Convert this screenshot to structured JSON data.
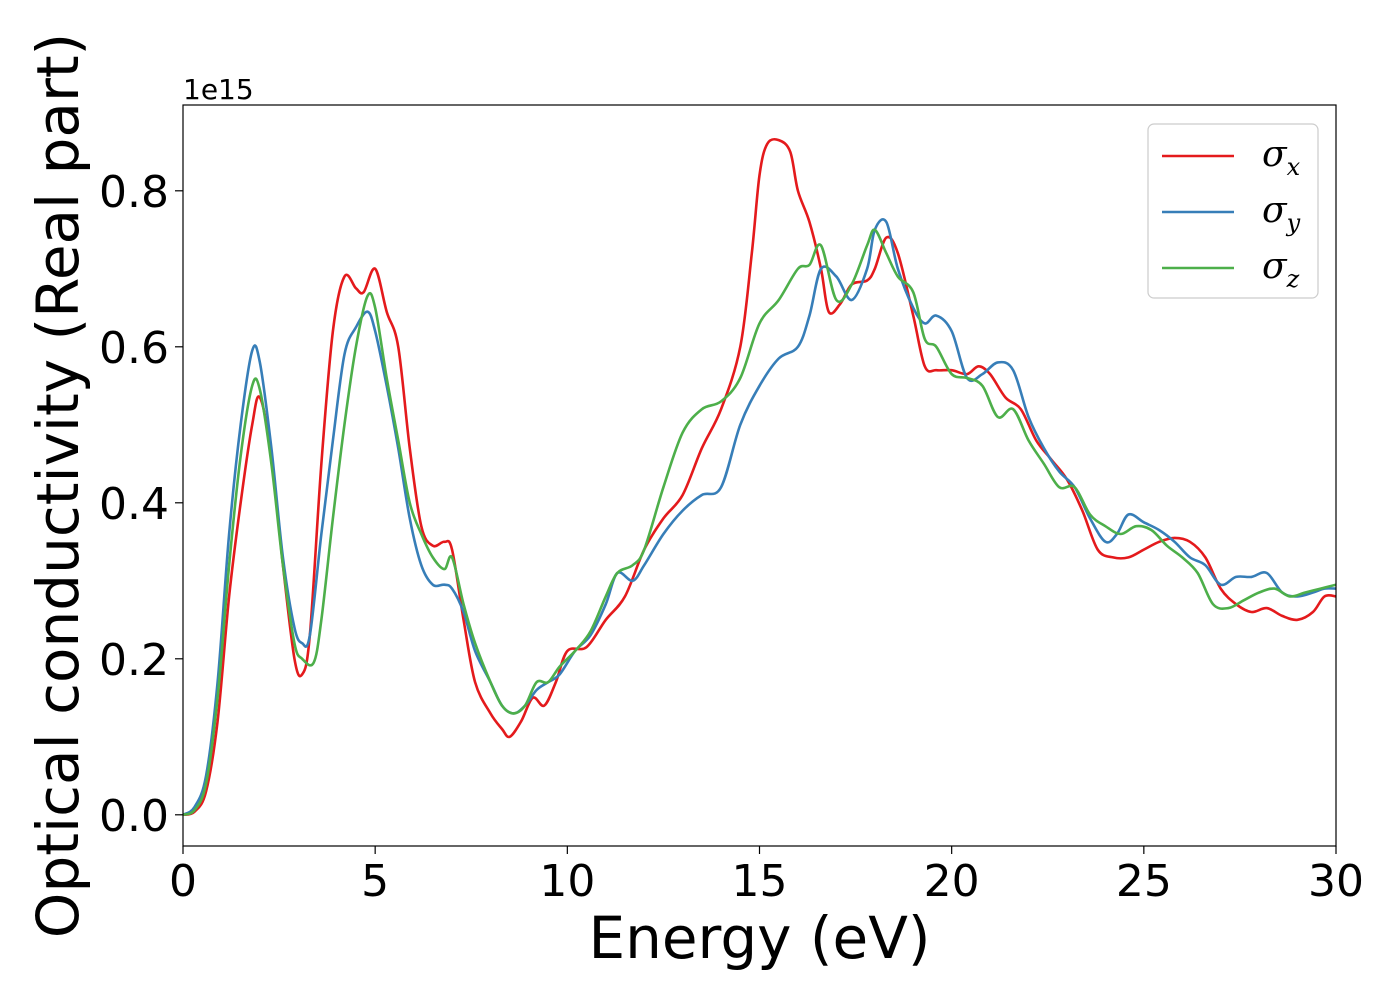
{
  "chart_data": {
    "type": "line",
    "xlabel": "Energy (eV)",
    "ylabel": "Optical conductivity (Real part)",
    "y_offset_label": "1e15",
    "xlim": [
      0,
      30
    ],
    "ylim": [
      -0.04,
      0.91
    ],
    "xticks": [
      0,
      5,
      10,
      15,
      20,
      25,
      30
    ],
    "yticks": [
      0.0,
      0.2,
      0.4,
      0.6,
      0.8
    ],
    "xtick_labels": [
      "0",
      "5",
      "10",
      "15",
      "20",
      "25",
      "30"
    ],
    "ytick_labels": [
      "0.0",
      "0.2",
      "0.4",
      "0.6",
      "0.8"
    ],
    "grid": false,
    "legend": {
      "placement": "top-right",
      "entries": [
        {
          "base": "σ",
          "sub": "x",
          "color": "#e41a1c"
        },
        {
          "base": "σ",
          "sub": "y",
          "color": "#377eb8"
        },
        {
          "base": "σ",
          "sub": "z",
          "color": "#4daf4a"
        }
      ]
    },
    "series": [
      {
        "color": "#e41a1c",
        "x": [
          0,
          0.3,
          0.6,
          0.9,
          1.2,
          1.5,
          1.8,
          2.0,
          2.3,
          2.6,
          2.9,
          3.1,
          3.3,
          3.6,
          3.9,
          4.2,
          4.5,
          4.7,
          5.0,
          5.3,
          5.6,
          5.9,
          6.2,
          6.5,
          6.8,
          7.0,
          7.3,
          7.6,
          8.0,
          8.3,
          8.5,
          8.8,
          9.1,
          9.4,
          9.7,
          10.0,
          10.5,
          11.0,
          11.5,
          12.0,
          12.5,
          13.0,
          13.5,
          14.0,
          14.5,
          14.8,
          15.0,
          15.2,
          15.5,
          15.8,
          16.0,
          16.3,
          16.6,
          16.8,
          17.1,
          17.4,
          17.8,
          18.0,
          18.3,
          18.6,
          19.0,
          19.3,
          19.6,
          20.0,
          20.4,
          20.7,
          21.0,
          21.4,
          21.8,
          22.2,
          22.6,
          23.0,
          23.4,
          23.8,
          24.2,
          24.6,
          25.0,
          25.4,
          25.8,
          26.2,
          26.6,
          27.0,
          27.4,
          27.8,
          28.2,
          28.6,
          29.0,
          29.4,
          29.7,
          30.0
        ],
        "y": [
          0.0,
          0.004,
          0.03,
          0.12,
          0.28,
          0.4,
          0.5,
          0.535,
          0.46,
          0.32,
          0.2,
          0.18,
          0.23,
          0.45,
          0.62,
          0.69,
          0.675,
          0.67,
          0.7,
          0.645,
          0.6,
          0.47,
          0.37,
          0.345,
          0.35,
          0.34,
          0.25,
          0.17,
          0.13,
          0.11,
          0.1,
          0.12,
          0.15,
          0.14,
          0.17,
          0.21,
          0.215,
          0.25,
          0.28,
          0.34,
          0.38,
          0.41,
          0.47,
          0.52,
          0.6,
          0.72,
          0.82,
          0.86,
          0.865,
          0.85,
          0.8,
          0.76,
          0.7,
          0.645,
          0.655,
          0.68,
          0.685,
          0.7,
          0.74,
          0.72,
          0.64,
          0.575,
          0.57,
          0.57,
          0.565,
          0.575,
          0.565,
          0.535,
          0.52,
          0.48,
          0.455,
          0.43,
          0.39,
          0.34,
          0.33,
          0.33,
          0.34,
          0.35,
          0.355,
          0.35,
          0.33,
          0.29,
          0.27,
          0.26,
          0.265,
          0.255,
          0.25,
          0.26,
          0.28,
          0.28
        ]
      },
      {
        "color": "#377eb8",
        "x": [
          0,
          0.3,
          0.6,
          0.9,
          1.2,
          1.5,
          1.8,
          2.0,
          2.3,
          2.6,
          2.9,
          3.1,
          3.3,
          3.6,
          3.9,
          4.2,
          4.5,
          4.8,
          5.0,
          5.3,
          5.6,
          5.9,
          6.2,
          6.5,
          6.8,
          7.0,
          7.3,
          7.6,
          8.0,
          8.3,
          8.6,
          8.9,
          9.2,
          9.5,
          9.8,
          10.2,
          10.6,
          11.0,
          11.3,
          11.7,
          12.0,
          12.5,
          13.0,
          13.5,
          14.0,
          14.5,
          15.0,
          15.5,
          16.0,
          16.3,
          16.6,
          17.0,
          17.4,
          17.8,
          18.0,
          18.3,
          18.6,
          19.0,
          19.3,
          19.6,
          20.0,
          20.4,
          20.8,
          21.2,
          21.6,
          22.0,
          22.4,
          22.8,
          23.2,
          23.6,
          24.0,
          24.3,
          24.6,
          25.0,
          25.4,
          25.8,
          26.2,
          26.6,
          27.0,
          27.4,
          27.8,
          28.2,
          28.6,
          29.0,
          29.4,
          29.7,
          30.0
        ],
        "y": [
          0.0,
          0.01,
          0.05,
          0.17,
          0.36,
          0.5,
          0.595,
          0.58,
          0.47,
          0.33,
          0.24,
          0.22,
          0.23,
          0.36,
          0.48,
          0.59,
          0.625,
          0.645,
          0.62,
          0.55,
          0.47,
          0.38,
          0.32,
          0.295,
          0.295,
          0.29,
          0.26,
          0.21,
          0.17,
          0.14,
          0.13,
          0.14,
          0.16,
          0.17,
          0.18,
          0.21,
          0.23,
          0.27,
          0.31,
          0.3,
          0.32,
          0.36,
          0.39,
          0.41,
          0.42,
          0.5,
          0.55,
          0.585,
          0.6,
          0.64,
          0.7,
          0.69,
          0.66,
          0.7,
          0.75,
          0.76,
          0.7,
          0.65,
          0.63,
          0.64,
          0.62,
          0.56,
          0.565,
          0.58,
          0.57,
          0.51,
          0.47,
          0.44,
          0.42,
          0.38,
          0.35,
          0.36,
          0.385,
          0.375,
          0.365,
          0.35,
          0.33,
          0.32,
          0.295,
          0.305,
          0.305,
          0.31,
          0.285,
          0.28,
          0.285,
          0.29,
          0.29
        ]
      },
      {
        "color": "#4daf4a",
        "x": [
          0,
          0.3,
          0.6,
          0.9,
          1.2,
          1.5,
          1.8,
          2.0,
          2.3,
          2.6,
          2.9,
          3.1,
          3.4,
          3.6,
          3.9,
          4.2,
          4.5,
          4.8,
          5.0,
          5.3,
          5.6,
          5.9,
          6.2,
          6.5,
          6.8,
          7.0,
          7.3,
          7.6,
          8.0,
          8.3,
          8.6,
          8.9,
          9.2,
          9.5,
          9.8,
          10.2,
          10.6,
          11.0,
          11.3,
          11.7,
          12.0,
          12.5,
          13.0,
          13.5,
          14.0,
          14.5,
          15.0,
          15.5,
          16.0,
          16.3,
          16.6,
          17.0,
          17.4,
          17.8,
          18.0,
          18.3,
          18.6,
          19.0,
          19.3,
          19.6,
          20.0,
          20.4,
          20.8,
          21.2,
          21.6,
          22.0,
          22.4,
          22.8,
          23.2,
          23.6,
          24.0,
          24.4,
          24.8,
          25.2,
          25.6,
          26.0,
          26.4,
          26.8,
          27.2,
          27.6,
          28.0,
          28.4,
          28.8,
          29.2,
          29.6,
          30.0
        ],
        "y": [
          0.0,
          0.006,
          0.04,
          0.15,
          0.32,
          0.46,
          0.55,
          0.545,
          0.45,
          0.32,
          0.22,
          0.2,
          0.195,
          0.25,
          0.38,
          0.5,
          0.6,
          0.665,
          0.65,
          0.56,
          0.48,
          0.4,
          0.36,
          0.33,
          0.315,
          0.33,
          0.27,
          0.22,
          0.17,
          0.14,
          0.13,
          0.14,
          0.17,
          0.17,
          0.19,
          0.21,
          0.235,
          0.28,
          0.31,
          0.32,
          0.34,
          0.42,
          0.49,
          0.52,
          0.53,
          0.56,
          0.63,
          0.66,
          0.7,
          0.705,
          0.73,
          0.66,
          0.68,
          0.73,
          0.75,
          0.72,
          0.69,
          0.67,
          0.61,
          0.6,
          0.565,
          0.56,
          0.55,
          0.51,
          0.52,
          0.48,
          0.45,
          0.42,
          0.42,
          0.385,
          0.37,
          0.36,
          0.37,
          0.365,
          0.345,
          0.33,
          0.31,
          0.27,
          0.265,
          0.275,
          0.285,
          0.29,
          0.28,
          0.285,
          0.29,
          0.295
        ]
      }
    ]
  }
}
